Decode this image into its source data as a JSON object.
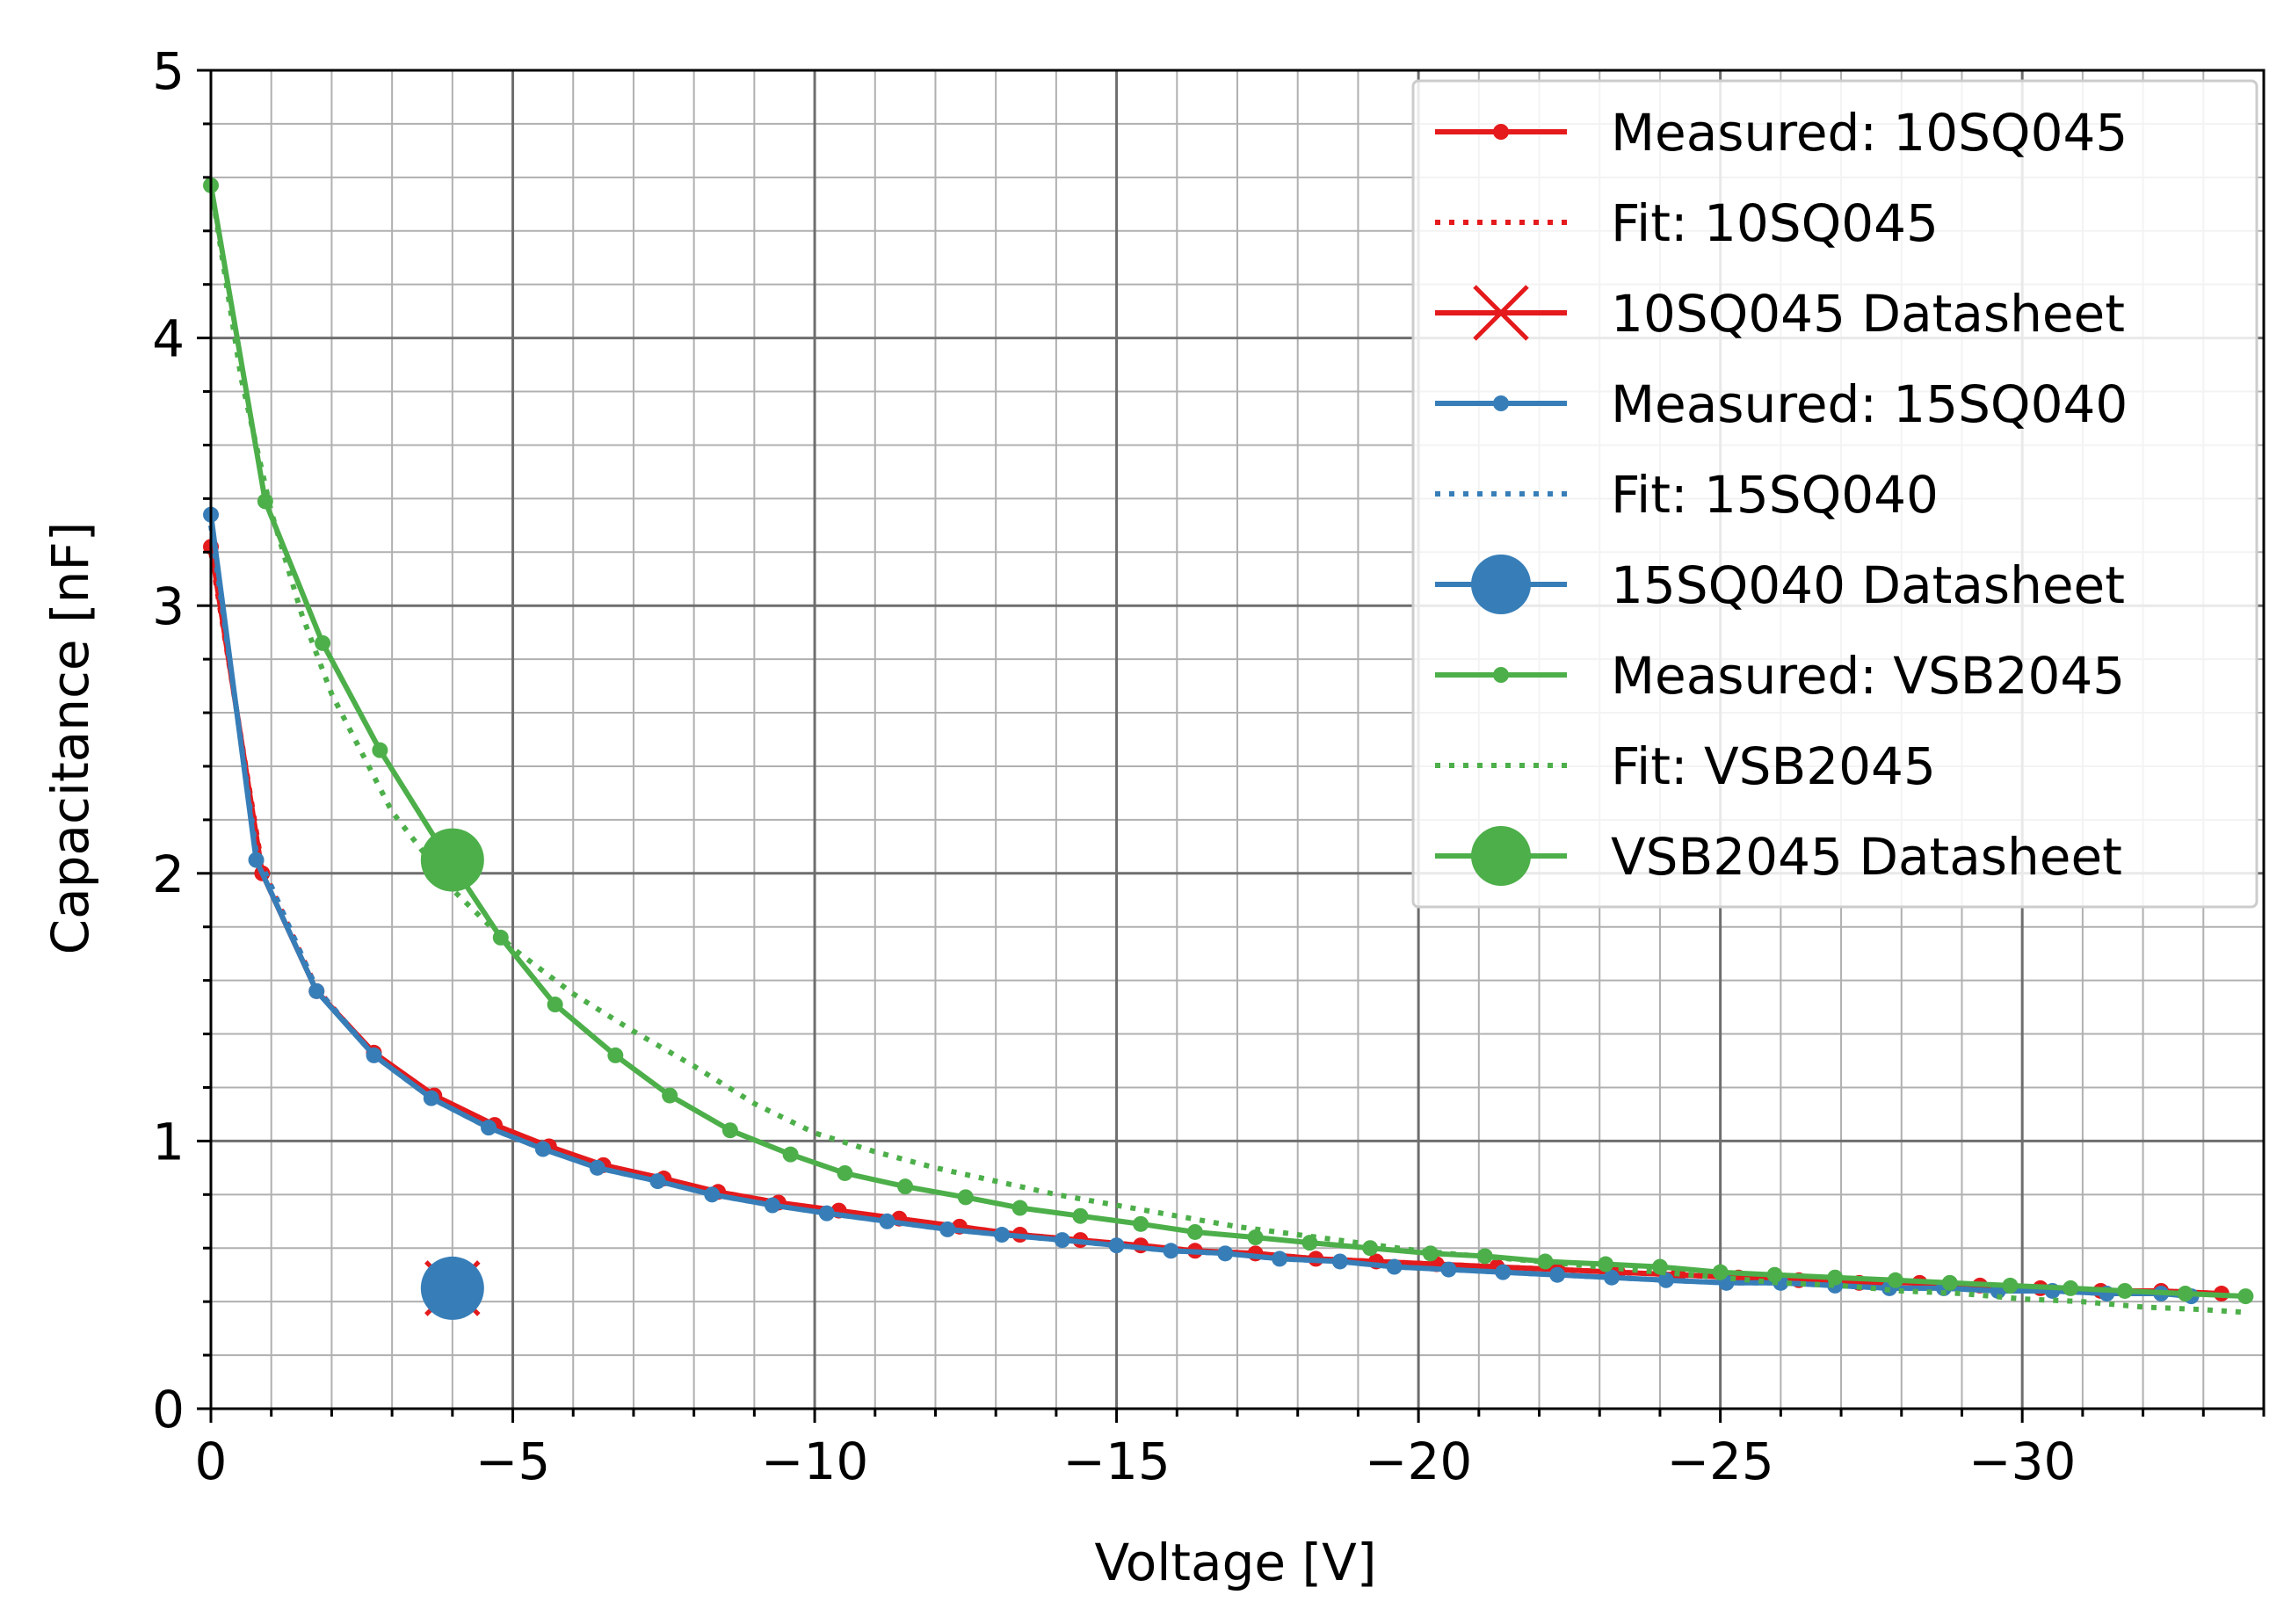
{
  "chart_data": {
    "type": "line",
    "xlabel": "Voltage [V]",
    "ylabel": "Capacitance [nF]",
    "xlim": [
      0,
      -34
    ],
    "ylim": [
      0,
      5
    ],
    "x_major_ticks": [
      0,
      -5,
      -10,
      -15,
      -20,
      -25,
      -30
    ],
    "x_major_labels": [
      "0",
      "−5",
      "−10",
      "−15",
      "−20",
      "−25",
      "−30"
    ],
    "y_major_ticks": [
      0,
      1,
      2,
      3,
      4,
      5
    ],
    "y_major_labels": [
      "0",
      "1",
      "2",
      "3",
      "4",
      "5"
    ],
    "x_minor_step": 1,
    "y_minor_step": 0.2,
    "grid": true,
    "legend_position": "top-right",
    "series": [
      {
        "name": "Measured: 10SQ045",
        "color": "#e41a1c",
        "style": "solid-dots",
        "points": [
          [
            0,
            3.22
          ],
          [
            -0.85,
            2.0
          ],
          [
            -1.75,
            1.56
          ],
          [
            -2.7,
            1.33
          ],
          [
            -3.7,
            1.17
          ],
          [
            -4.7,
            1.06
          ],
          [
            -5.6,
            0.98
          ],
          [
            -6.5,
            0.91
          ],
          [
            -7.5,
            0.86
          ],
          [
            -8.4,
            0.81
          ],
          [
            -9.4,
            0.77
          ],
          [
            -10.4,
            0.74
          ],
          [
            -11.4,
            0.71
          ],
          [
            -12.4,
            0.68
          ],
          [
            -13.4,
            0.65
          ],
          [
            -14.4,
            0.63
          ],
          [
            -15.4,
            0.61
          ],
          [
            -16.3,
            0.59
          ],
          [
            -17.3,
            0.58
          ],
          [
            -18.3,
            0.56
          ],
          [
            -19.3,
            0.55
          ],
          [
            -20.3,
            0.54
          ],
          [
            -21.3,
            0.53
          ],
          [
            -22.3,
            0.52
          ],
          [
            -23.3,
            0.51
          ],
          [
            -24.3,
            0.5
          ],
          [
            -25.3,
            0.49
          ],
          [
            -26.3,
            0.48
          ],
          [
            -27.3,
            0.47
          ],
          [
            -28.3,
            0.47
          ],
          [
            -29.3,
            0.46
          ],
          [
            -30.3,
            0.45
          ],
          [
            -31.3,
            0.44
          ],
          [
            -32.3,
            0.44
          ],
          [
            -33.3,
            0.43
          ]
        ]
      },
      {
        "name": "Fit: 10SQ045",
        "color": "#e41a1c",
        "style": "dotted",
        "points": [
          [
            0,
            3.2
          ],
          [
            -0.85,
            2.02
          ],
          [
            -1.75,
            1.57
          ],
          [
            -2.7,
            1.32
          ],
          [
            -3.7,
            1.16
          ],
          [
            -4.7,
            1.05
          ],
          [
            -5.6,
            0.97
          ],
          [
            -6.5,
            0.91
          ],
          [
            -7.5,
            0.85
          ],
          [
            -8.4,
            0.81
          ],
          [
            -9.4,
            0.77
          ],
          [
            -10.4,
            0.73
          ],
          [
            -11.4,
            0.7
          ],
          [
            -12.4,
            0.68
          ],
          [
            -13.4,
            0.65
          ],
          [
            -14.4,
            0.63
          ],
          [
            -15.4,
            0.61
          ],
          [
            -16.3,
            0.59
          ],
          [
            -17.3,
            0.58
          ],
          [
            -18.3,
            0.56
          ],
          [
            -19.3,
            0.55
          ],
          [
            -20.3,
            0.54
          ],
          [
            -21.3,
            0.53
          ],
          [
            -22.3,
            0.52
          ],
          [
            -23.3,
            0.51
          ],
          [
            -24.3,
            0.5
          ],
          [
            -25.3,
            0.49
          ],
          [
            -26.3,
            0.48
          ],
          [
            -27.3,
            0.47
          ],
          [
            -28.3,
            0.47
          ],
          [
            -29.3,
            0.46
          ],
          [
            -30.3,
            0.45
          ],
          [
            -31.3,
            0.44
          ],
          [
            -32.3,
            0.44
          ],
          [
            -33.3,
            0.43
          ]
        ]
      },
      {
        "name": "10SQ045 Datasheet",
        "color": "#e41a1c",
        "style": "x-marker",
        "points": [
          [
            -4,
            0.45
          ]
        ]
      },
      {
        "name": "Measured: 15SQ040",
        "color": "#377eb8",
        "style": "solid-dots",
        "points": [
          [
            0,
            3.34
          ],
          [
            -0.75,
            2.05
          ],
          [
            -1.75,
            1.56
          ],
          [
            -2.7,
            1.32
          ],
          [
            -3.65,
            1.16
          ],
          [
            -4.6,
            1.05
          ],
          [
            -5.5,
            0.97
          ],
          [
            -6.4,
            0.9
          ],
          [
            -7.4,
            0.85
          ],
          [
            -8.3,
            0.8
          ],
          [
            -9.3,
            0.76
          ],
          [
            -10.2,
            0.73
          ],
          [
            -11.2,
            0.7
          ],
          [
            -12.2,
            0.67
          ],
          [
            -13.1,
            0.65
          ],
          [
            -14.1,
            0.63
          ],
          [
            -15.0,
            0.61
          ],
          [
            -15.9,
            0.59
          ],
          [
            -16.8,
            0.58
          ],
          [
            -17.7,
            0.56
          ],
          [
            -18.7,
            0.55
          ],
          [
            -19.6,
            0.53
          ],
          [
            -20.5,
            0.52
          ],
          [
            -21.4,
            0.51
          ],
          [
            -22.3,
            0.5
          ],
          [
            -23.2,
            0.49
          ],
          [
            -24.1,
            0.48
          ],
          [
            -25.1,
            0.47
          ],
          [
            -26.0,
            0.47
          ],
          [
            -26.9,
            0.46
          ],
          [
            -27.8,
            0.45
          ],
          [
            -28.7,
            0.45
          ],
          [
            -29.6,
            0.44
          ],
          [
            -30.5,
            0.44
          ],
          [
            -31.4,
            0.43
          ],
          [
            -32.3,
            0.43
          ],
          [
            -32.8,
            0.42
          ]
        ]
      },
      {
        "name": "Fit: 15SQ040",
        "color": "#377eb8",
        "style": "dotted",
        "points": [
          [
            0,
            3.3
          ],
          [
            -0.75,
            2.08
          ],
          [
            -1.75,
            1.57
          ],
          [
            -2.7,
            1.32
          ],
          [
            -3.65,
            1.16
          ],
          [
            -4.6,
            1.05
          ],
          [
            -5.5,
            0.97
          ],
          [
            -6.4,
            0.9
          ],
          [
            -7.4,
            0.85
          ],
          [
            -8.3,
            0.8
          ],
          [
            -9.3,
            0.76
          ],
          [
            -10.2,
            0.73
          ],
          [
            -11.2,
            0.7
          ],
          [
            -12.2,
            0.67
          ],
          [
            -13.1,
            0.65
          ],
          [
            -14.1,
            0.63
          ],
          [
            -15.0,
            0.61
          ],
          [
            -15.9,
            0.59
          ],
          [
            -16.8,
            0.58
          ],
          [
            -17.7,
            0.56
          ],
          [
            -18.7,
            0.55
          ],
          [
            -19.6,
            0.53
          ],
          [
            -20.5,
            0.52
          ],
          [
            -21.4,
            0.51
          ],
          [
            -22.3,
            0.5
          ],
          [
            -23.2,
            0.49
          ],
          [
            -24.1,
            0.48
          ],
          [
            -25.1,
            0.47
          ],
          [
            -26.0,
            0.47
          ],
          [
            -26.9,
            0.46
          ],
          [
            -27.8,
            0.45
          ],
          [
            -28.7,
            0.45
          ],
          [
            -29.6,
            0.44
          ],
          [
            -30.5,
            0.44
          ],
          [
            -31.4,
            0.43
          ],
          [
            -32.3,
            0.43
          ],
          [
            -32.8,
            0.42
          ]
        ]
      },
      {
        "name": "15SQ040 Datasheet",
        "color": "#377eb8",
        "style": "big-circle",
        "points": [
          [
            -4,
            0.45
          ]
        ]
      },
      {
        "name": "Measured: VSB2045",
        "color": "#4daf4a",
        "style": "solid-dots",
        "points": [
          [
            0,
            4.57
          ],
          [
            -0.9,
            3.39
          ],
          [
            -1.85,
            2.86
          ],
          [
            -2.8,
            2.46
          ],
          [
            -3.8,
            2.1
          ],
          [
            -4.8,
            1.76
          ],
          [
            -5.7,
            1.51
          ],
          [
            -6.7,
            1.32
          ],
          [
            -7.6,
            1.17
          ],
          [
            -8.6,
            1.04
          ],
          [
            -9.6,
            0.95
          ],
          [
            -10.5,
            0.88
          ],
          [
            -11.5,
            0.83
          ],
          [
            -12.5,
            0.79
          ],
          [
            -13.4,
            0.75
          ],
          [
            -14.4,
            0.72
          ],
          [
            -15.4,
            0.69
          ],
          [
            -16.3,
            0.66
          ],
          [
            -17.3,
            0.64
          ],
          [
            -18.2,
            0.62
          ],
          [
            -19.2,
            0.6
          ],
          [
            -20.2,
            0.58
          ],
          [
            -21.1,
            0.57
          ],
          [
            -22.1,
            0.55
          ],
          [
            -23.1,
            0.54
          ],
          [
            -24.0,
            0.53
          ],
          [
            -25.0,
            0.51
          ],
          [
            -25.9,
            0.5
          ],
          [
            -26.9,
            0.49
          ],
          [
            -27.9,
            0.48
          ],
          [
            -28.8,
            0.47
          ],
          [
            -29.8,
            0.46
          ],
          [
            -30.8,
            0.45
          ],
          [
            -31.7,
            0.44
          ],
          [
            -32.7,
            0.43
          ],
          [
            -33.7,
            0.42
          ]
        ]
      },
      {
        "name": "Fit: VSB2045",
        "color": "#4daf4a",
        "style": "dotted",
        "points": [
          [
            0,
            4.57
          ],
          [
            -0.5,
            3.85
          ],
          [
            -1.0,
            3.35
          ],
          [
            -1.5,
            2.97
          ],
          [
            -2.0,
            2.67
          ],
          [
            -3.0,
            2.23
          ],
          [
            -4.0,
            1.94
          ],
          [
            -5.0,
            1.72
          ],
          [
            -6.0,
            1.55
          ],
          [
            -7.0,
            1.41
          ],
          [
            -8.0,
            1.28
          ],
          [
            -9.0,
            1.14
          ],
          [
            -10.0,
            1.03
          ],
          [
            -11.0,
            0.96
          ],
          [
            -12.0,
            0.9
          ],
          [
            -13.0,
            0.85
          ],
          [
            -14.0,
            0.8
          ],
          [
            -15.0,
            0.76
          ],
          [
            -16.0,
            0.72
          ],
          [
            -17.0,
            0.68
          ],
          [
            -18.0,
            0.65
          ],
          [
            -19.0,
            0.62
          ],
          [
            -20.0,
            0.59
          ],
          [
            -21.0,
            0.57
          ],
          [
            -22.0,
            0.55
          ],
          [
            -23.0,
            0.53
          ],
          [
            -24.0,
            0.51
          ],
          [
            -25.0,
            0.49
          ],
          [
            -26.0,
            0.47
          ],
          [
            -27.0,
            0.46
          ],
          [
            -28.0,
            0.44
          ],
          [
            -29.0,
            0.43
          ],
          [
            -30.0,
            0.41
          ],
          [
            -31.0,
            0.4
          ],
          [
            -32.0,
            0.38
          ],
          [
            -33.0,
            0.37
          ],
          [
            -33.7,
            0.36
          ]
        ]
      },
      {
        "name": "VSB2045 Datasheet",
        "color": "#4daf4a",
        "style": "big-circle",
        "points": [
          [
            -4,
            2.05
          ]
        ]
      }
    ]
  }
}
